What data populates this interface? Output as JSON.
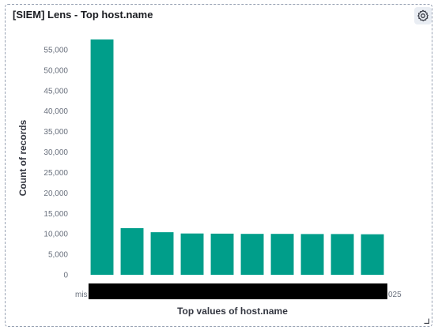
{
  "panel": {
    "title": "[SIEM] Lens - Top host.name",
    "settings_icon": "gear-icon"
  },
  "colors": {
    "bar": "#009e8a",
    "redaction": "#000000",
    "border": "#98a2b3"
  },
  "chart_data": {
    "type": "bar",
    "xlabel": "Top values of host.name",
    "ylabel": "Count of records",
    "ylim": [
      0,
      57500
    ],
    "yticks": [
      0,
      5000,
      10000,
      15000,
      20000,
      25000,
      30000,
      35000,
      40000,
      45000,
      50000,
      55000
    ],
    "ytick_labels": [
      "0",
      "5,000",
      "10,000",
      "15,000",
      "20,000",
      "25,000",
      "30,000",
      "35,000",
      "40,000",
      "45,000",
      "50,000",
      "55,000"
    ],
    "values": [
      57500,
      11400,
      10400,
      10100,
      10050,
      10000,
      10000,
      9950,
      9950,
      9900
    ],
    "x_tick_fragments": {
      "left": "mis",
      "right": "025"
    },
    "redacted_x_labels": true,
    "grid": false,
    "legend": "none"
  }
}
